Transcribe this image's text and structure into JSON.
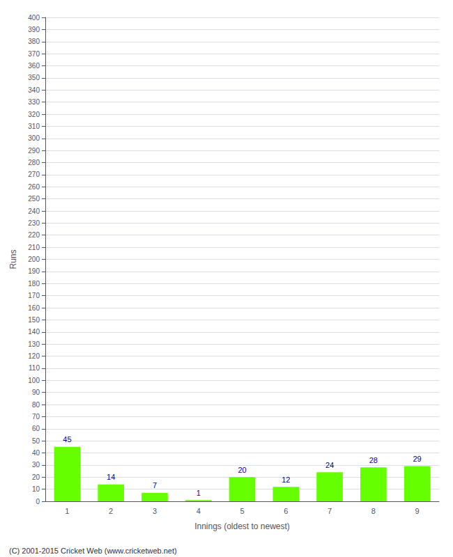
{
  "chart_data": {
    "type": "bar",
    "categories": [
      "1",
      "2",
      "3",
      "4",
      "5",
      "6",
      "7",
      "8",
      "9"
    ],
    "values": [
      45,
      14,
      7,
      1,
      20,
      12,
      24,
      28,
      29
    ],
    "color": "#66ff00",
    "xlabel": "Innings (oldest to newest)",
    "ylabel": "Runs",
    "ylim": [
      0,
      400
    ],
    "yticks": [
      0,
      10,
      20,
      30,
      40,
      50,
      60,
      70,
      80,
      90,
      100,
      110,
      120,
      130,
      140,
      150,
      160,
      170,
      180,
      190,
      200,
      210,
      220,
      230,
      240,
      250,
      260,
      270,
      280,
      290,
      300,
      310,
      320,
      330,
      340,
      350,
      360,
      370,
      380,
      390,
      400
    ],
    "grid": true,
    "data_labels": true,
    "annotations": [
      "(C) 2001-2015 Cricket Web (www.cricketweb.net)"
    ]
  }
}
